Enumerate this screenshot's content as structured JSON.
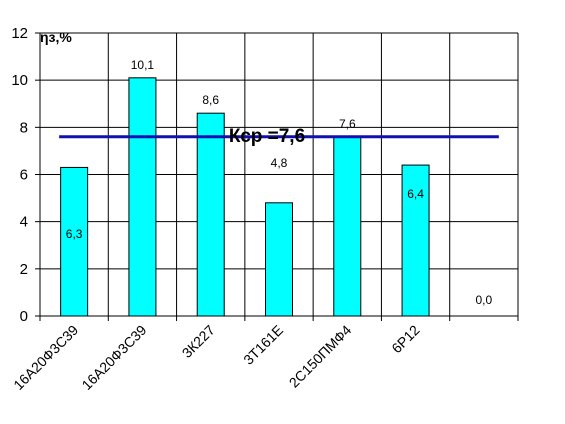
{
  "chart_data": {
    "type": "bar",
    "categories": [
      "16А20Ф3С39",
      "16А20Ф3С39",
      "3К227",
      "3Т161Е",
      "2С150ПМФ4",
      "6Р12",
      ""
    ],
    "values": [
      6.3,
      10.1,
      8.6,
      4.8,
      7.6,
      6.4,
      0.0
    ],
    "value_labels": [
      "6,3",
      "10,1",
      "8,6",
      "4,8",
      "7,6",
      "6,4",
      "0,0"
    ],
    "ylabel": "ηз,%",
    "ylim": [
      0,
      12
    ],
    "yticks": [
      "0",
      "2",
      "4",
      "6",
      "8",
      "10",
      "12"
    ],
    "grid": true,
    "bar_color": "#00FFFF",
    "average": {
      "value": 7.6,
      "label": "Кср =7,6",
      "color": "#1010B0"
    }
  }
}
